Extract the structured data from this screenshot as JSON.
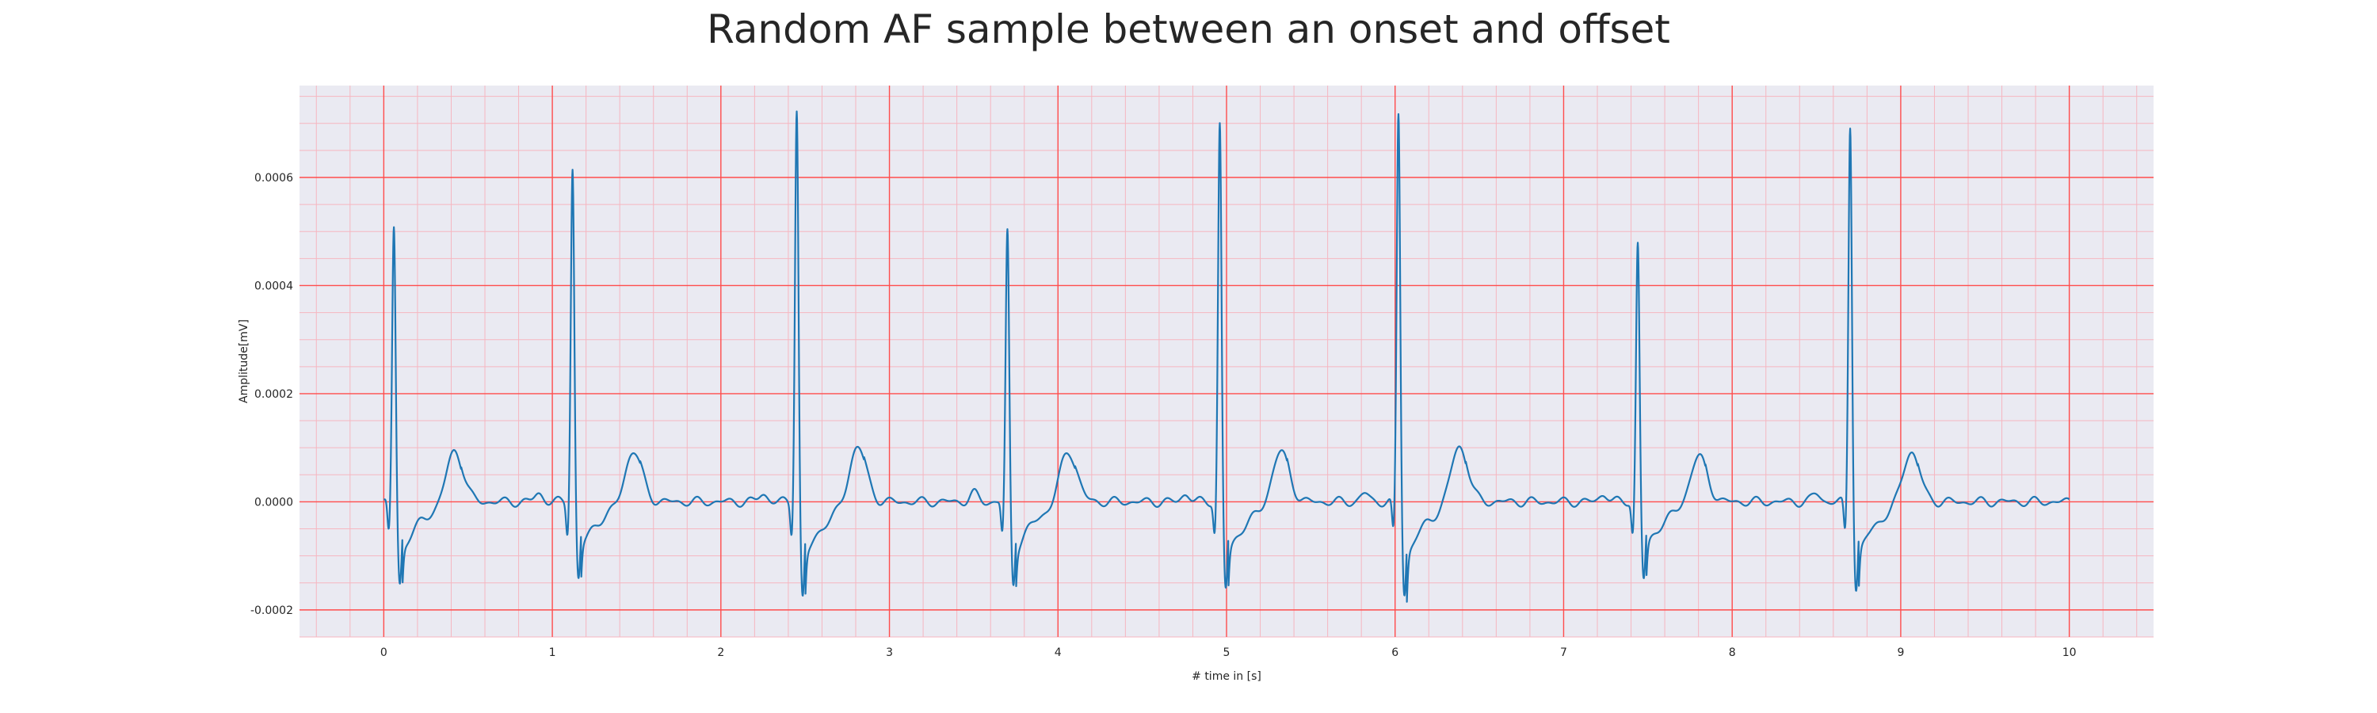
{
  "chart_data": {
    "type": "line",
    "title": "Random AF sample between an onset and offset",
    "xlabel": "# time in [s]",
    "ylabel": "Amplitude[mV]",
    "xlim": [
      -0.5,
      10.5
    ],
    "ylim": [
      -0.00025,
      0.00077
    ],
    "xticks": [
      0,
      1,
      2,
      3,
      4,
      5,
      6,
      7,
      8,
      9,
      10
    ],
    "yticks": [
      -0.0002,
      0.0,
      0.0002,
      0.0004,
      0.0006
    ],
    "ytick_labels": [
      "-0.0002",
      "0.0000",
      "0.0002",
      "0.0004",
      "0.0006"
    ],
    "grid": true,
    "colors": {
      "line": "#1f77b4",
      "background": "#eaeaf2",
      "major_grid": "#ff4d4d",
      "minor_grid": "#f6b6c0"
    },
    "series": [
      {
        "name": "",
        "beats": [
          {
            "r_time": 0.06,
            "r_amp": 0.00051,
            "s_amp": -0.00017,
            "t_amp": 0.0001
          },
          {
            "r_time": 1.12,
            "r_amp": 0.00062,
            "s_amp": -0.00016,
            "t_amp": 0.0001
          },
          {
            "r_time": 2.45,
            "r_amp": 0.00073,
            "s_amp": -0.0002,
            "t_amp": 0.00011
          },
          {
            "r_time": 3.7,
            "r_amp": 0.0005,
            "s_amp": -0.00017,
            "t_amp": 0.0001
          },
          {
            "r_time": 4.96,
            "r_amp": 0.0007,
            "s_amp": -0.00018,
            "t_amp": 0.0001
          },
          {
            "r_time": 6.02,
            "r_amp": 0.00072,
            "s_amp": -0.00019,
            "t_amp": 0.00011
          },
          {
            "r_time": 7.44,
            "r_amp": 0.00048,
            "s_amp": -0.00016,
            "t_amp": 9e-05
          },
          {
            "r_time": 8.7,
            "r_amp": 0.0007,
            "s_amp": -0.00018,
            "t_amp": 0.0001
          }
        ],
        "x_range": [
          0.0,
          10.0
        ]
      }
    ]
  }
}
